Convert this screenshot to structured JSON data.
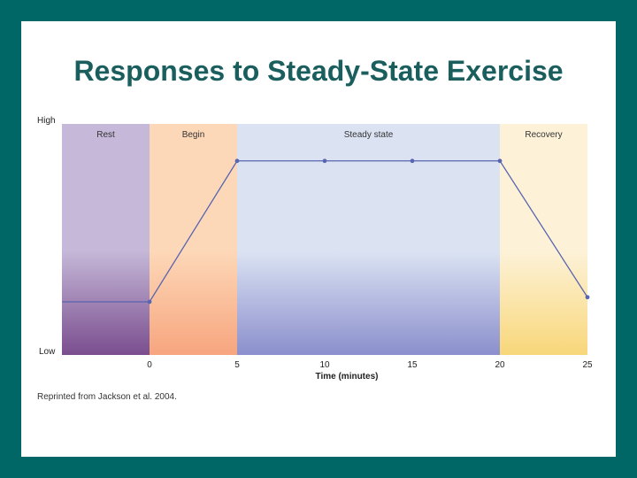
{
  "slide": {
    "title": "Responses to Steady-State Exercise",
    "source": "Reprinted from Jackson et al. 2004."
  },
  "chart_data": {
    "type": "line",
    "title": "",
    "xlabel": "Time (minutes)",
    "ylabel": "",
    "xlim": [
      -5,
      25
    ],
    "x_ticks": [
      0,
      5,
      10,
      15,
      20,
      25
    ],
    "y_tick_labels": {
      "top": "High",
      "bottom": "Low"
    },
    "phases": [
      {
        "label": "Rest",
        "start": -5,
        "end": 0,
        "colors": [
          "#c5b8d8",
          "#7a4e8e"
        ]
      },
      {
        "label": "Begin",
        "start": 0,
        "end": 5,
        "colors": [
          "#fdd8b8",
          "#f7a57e"
        ]
      },
      {
        "label": "Steady state",
        "start": 5,
        "end": 20,
        "colors": [
          "#dbe3f3",
          "#8b8fcc"
        ]
      },
      {
        "label": "Recovery",
        "start": 20,
        "end": 25,
        "colors": [
          "#fdf2d8",
          "#f8d77a"
        ]
      }
    ],
    "series": [
      {
        "x": [
          -5,
          0,
          5,
          10,
          15,
          20,
          25
        ],
        "y": [
          0.23,
          0.23,
          0.84,
          0.84,
          0.84,
          0.84,
          0.25
        ],
        "markers_x": [
          0,
          5,
          10,
          15,
          20,
          25
        ],
        "color": "#5865b0"
      }
    ]
  }
}
